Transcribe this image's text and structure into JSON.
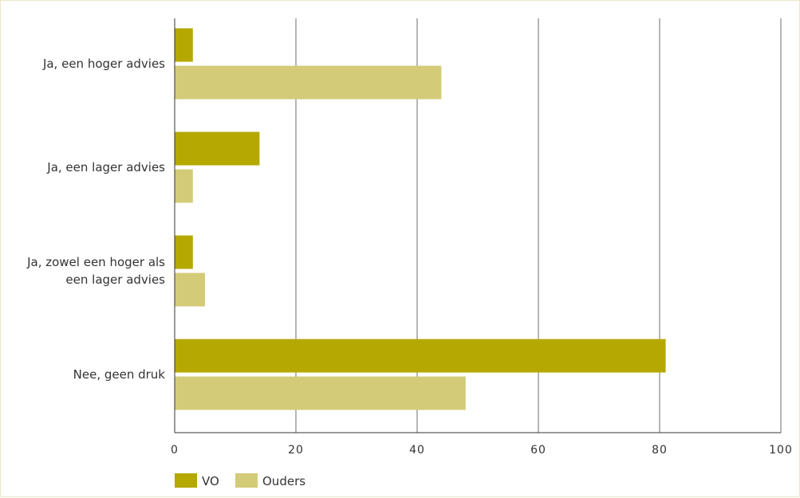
{
  "chart_data": {
    "type": "bar",
    "orientation": "horizontal",
    "categories": [
      [
        "Ja, een hoger advies"
      ],
      [
        "Ja, een lager advies"
      ],
      [
        "Ja, zowel een hoger als",
        "een lager advies"
      ],
      [
        "Nee, geen druk"
      ]
    ],
    "series": [
      {
        "name": "VO",
        "values": [
          3,
          14,
          3,
          81
        ],
        "color": "#b5a800"
      },
      {
        "name": "Ouders",
        "values": [
          44,
          3,
          5,
          48
        ],
        "color": "#d4cb79"
      }
    ],
    "xlim": [
      0,
      100
    ],
    "xticks": [
      "0",
      "20",
      "40",
      "60",
      "80",
      "100"
    ],
    "grid": true,
    "legend": "bottom-left"
  }
}
